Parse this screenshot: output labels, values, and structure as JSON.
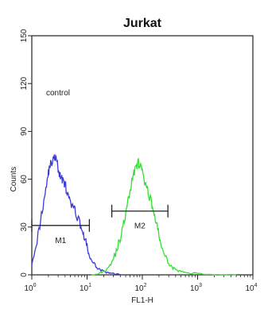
{
  "chart_data": {
    "type": "line",
    "title": "Jurkat",
    "xlabel": "FL1-H",
    "ylabel": "Counts",
    "x_scale": "log",
    "xlim": [
      1,
      10000
    ],
    "ylim": [
      0,
      150
    ],
    "x_ticks": [
      {
        "value": 1,
        "label": "10",
        "exp": "0"
      },
      {
        "value": 10,
        "label": "10",
        "exp": "1"
      },
      {
        "value": 100,
        "label": "10",
        "exp": "2"
      },
      {
        "value": 1000,
        "label": "10",
        "exp": "3"
      },
      {
        "value": 10000,
        "label": "10",
        "exp": "4"
      }
    ],
    "y_ticks": [
      0,
      30,
      60,
      90,
      120,
      150
    ],
    "grid": false,
    "annotation": "control",
    "colors": {
      "control": "#3a3ad6",
      "sample": "#33e033",
      "frame": "#222222"
    },
    "series": [
      {
        "key": "control",
        "x": [
          1.0,
          1.3,
          1.6,
          1.9,
          2.1,
          2.4,
          2.7,
          3.0,
          3.3,
          3.7,
          4.1,
          4.6,
          5.2,
          6.0,
          7.0,
          8.2,
          9.5,
          11,
          13,
          16,
          20,
          25,
          30,
          40
        ],
        "y": [
          8,
          25,
          44,
          60,
          68,
          72,
          74,
          66,
          61,
          60,
          55,
          48,
          44,
          40,
          35,
          28,
          20,
          12,
          7,
          4,
          2,
          1,
          1,
          0
        ]
      },
      {
        "key": "sample",
        "x": [
          12,
          17,
          22,
          28,
          35,
          42,
          50,
          58,
          66,
          75,
          85,
          95,
          110,
          125,
          140,
          160,
          185,
          215,
          260,
          320,
          400,
          500,
          700,
          1000,
          2000,
          5000
        ],
        "y": [
          0,
          1,
          3,
          8,
          16,
          26,
          38,
          50,
          60,
          68,
          70,
          67,
          58,
          52,
          48,
          40,
          30,
          20,
          11,
          6,
          3,
          2,
          1,
          1,
          0,
          0
        ]
      }
    ],
    "markers": [
      {
        "label": "M1",
        "x_start": 1,
        "x_end": 11,
        "y": 31
      },
      {
        "label": "M2",
        "x_start": 28,
        "x_end": 290,
        "y": 40
      }
    ]
  }
}
